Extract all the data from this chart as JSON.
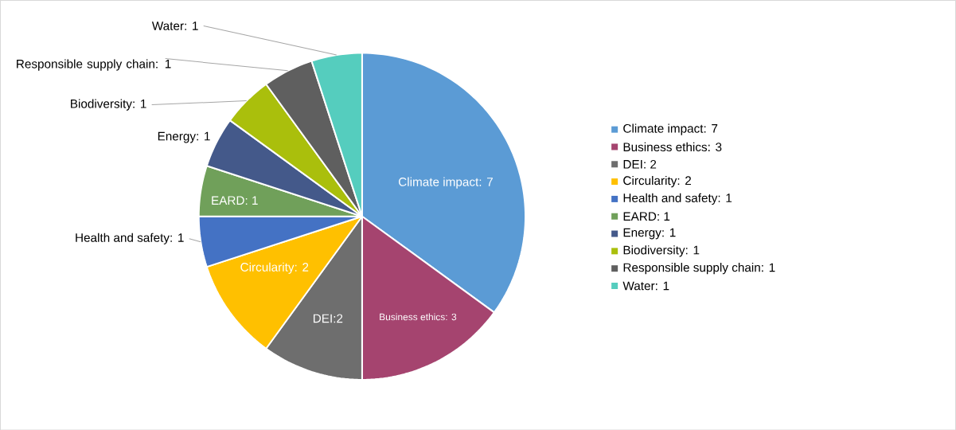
{
  "chart_data": {
    "type": "pie",
    "categories": [
      "Climate impact: 7",
      "Business ethics: 3",
      "DEI: 2",
      "Circularity: 2",
      "Health and safety: 1",
      "EARD: 1",
      "Energy: 1",
      "Biodiversity: 1",
      "Responsible supply chain: 1",
      "Water: 1"
    ],
    "values": [
      7,
      3,
      2,
      2,
      1,
      1,
      1,
      1,
      1,
      1
    ],
    "colors": [
      "#5b9bd5",
      "#a5446f",
      "#6e6e6e",
      "#ffc000",
      "#4472c4",
      "#70a05a",
      "#44598a",
      "#aabf0c",
      "#5f5f5f",
      "#55cdbe"
    ],
    "value_labels": [
      "Climate impact: 7",
      "Business ethics: 3",
      "DEI:2",
      "Circularity: 2",
      "Health and safety: 1",
      "EARD: 1",
      "Energy: 1",
      "Biodiversity: 1",
      "Responsible supply chain: 1",
      "Water: 1"
    ],
    "legend": "right"
  }
}
